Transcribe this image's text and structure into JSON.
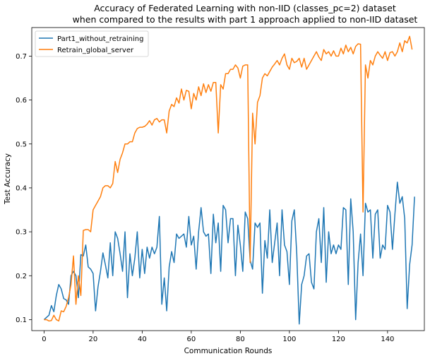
{
  "chart_data": {
    "type": "line",
    "title_line1": "Accuracy of Federated Learning with non-IID (classes_pc=2) dataset",
    "title_line2": "when compared to the results with part 1 approach applied to non-IID dataset",
    "xlabel": "Communication Rounds",
    "ylabel": "Test Accuracy",
    "xlim": [
      -5,
      155
    ],
    "ylim": [
      0.075,
      0.765
    ],
    "xticks": [
      0,
      20,
      40,
      60,
      80,
      100,
      120,
      140
    ],
    "yticks": [
      0.1,
      0.2,
      0.3,
      0.4,
      0.5,
      0.6,
      0.7
    ],
    "grid": false,
    "legend_position": "upper-left",
    "series": [
      {
        "name": "Part1_without_retraining",
        "color": "#1f77b4",
        "values": [
          0.1,
          0.105,
          0.11,
          0.132,
          0.118,
          0.155,
          0.18,
          0.17,
          0.148,
          0.145,
          0.135,
          0.2,
          0.21,
          0.2,
          0.15,
          0.248,
          0.245,
          0.27,
          0.22,
          0.215,
          0.205,
          0.12,
          0.175,
          0.21,
          0.252,
          0.225,
          0.195,
          0.275,
          0.2,
          0.3,
          0.285,
          0.25,
          0.21,
          0.3,
          0.15,
          0.25,
          0.2,
          0.24,
          0.3,
          0.195,
          0.26,
          0.205,
          0.265,
          0.24,
          0.265,
          0.25,
          0.265,
          0.335,
          0.135,
          0.195,
          0.12,
          0.22,
          0.255,
          0.23,
          0.295,
          0.285,
          0.29,
          0.295,
          0.265,
          0.335,
          0.27,
          0.29,
          0.215,
          0.3,
          0.355,
          0.3,
          0.29,
          0.295,
          0.205,
          0.34,
          0.275,
          0.32,
          0.21,
          0.36,
          0.35,
          0.275,
          0.33,
          0.33,
          0.2,
          0.315,
          0.27,
          0.21,
          0.345,
          0.33,
          0.235,
          0.215,
          0.32,
          0.31,
          0.32,
          0.16,
          0.28,
          0.24,
          0.35,
          0.23,
          0.275,
          0.32,
          0.2,
          0.35,
          0.27,
          0.255,
          0.18,
          0.325,
          0.35,
          0.25,
          0.09,
          0.18,
          0.2,
          0.245,
          0.25,
          0.185,
          0.17,
          0.3,
          0.33,
          0.23,
          0.355,
          0.185,
          0.3,
          0.25,
          0.27,
          0.25,
          0.27,
          0.26,
          0.355,
          0.35,
          0.18,
          0.375,
          0.3,
          0.1,
          0.23,
          0.295,
          0.2,
          0.365,
          0.345,
          0.35,
          0.24,
          0.34,
          0.35,
          0.24,
          0.27,
          0.26,
          0.36,
          0.345,
          0.26,
          0.34,
          0.413,
          0.365,
          0.38,
          0.33,
          0.125,
          0.225,
          0.27,
          0.38
        ]
      },
      {
        "name": "Retrain_global_server",
        "color": "#ff7f0e",
        "values": [
          0.1,
          0.1,
          0.097,
          0.098,
          0.11,
          0.1,
          0.097,
          0.12,
          0.118,
          0.13,
          0.15,
          0.18,
          0.245,
          0.135,
          0.2,
          0.155,
          0.303,
          0.305,
          0.305,
          0.3,
          0.35,
          0.36,
          0.37,
          0.38,
          0.4,
          0.405,
          0.405,
          0.4,
          0.41,
          0.46,
          0.435,
          0.465,
          0.48,
          0.5,
          0.5,
          0.505,
          0.505,
          0.525,
          0.535,
          0.538,
          0.538,
          0.54,
          0.545,
          0.553,
          0.543,
          0.555,
          0.558,
          0.55,
          0.555,
          0.555,
          0.525,
          0.575,
          0.59,
          0.585,
          0.605,
          0.593,
          0.625,
          0.6,
          0.622,
          0.62,
          0.58,
          0.615,
          0.6,
          0.63,
          0.61,
          0.637,
          0.617,
          0.635,
          0.62,
          0.64,
          0.64,
          0.525,
          0.635,
          0.625,
          0.66,
          0.66,
          0.67,
          0.67,
          0.68,
          0.673,
          0.65,
          0.677,
          0.68,
          0.68,
          0.23,
          0.57,
          0.5,
          0.595,
          0.61,
          0.65,
          0.66,
          0.655,
          0.665,
          0.675,
          0.682,
          0.69,
          0.68,
          0.695,
          0.705,
          0.68,
          0.67,
          0.695,
          0.685,
          0.688,
          0.695,
          0.675,
          0.695,
          0.67,
          0.68,
          0.69,
          0.7,
          0.71,
          0.698,
          0.69,
          0.715,
          0.705,
          0.71,
          0.7,
          0.712,
          0.7,
          0.7,
          0.718,
          0.705,
          0.725,
          0.71,
          0.72,
          0.705,
          0.722,
          0.728,
          0.727,
          0.345,
          0.68,
          0.65,
          0.69,
          0.68,
          0.7,
          0.71,
          0.702,
          0.695,
          0.71,
          0.69,
          0.708,
          0.71,
          0.7,
          0.71,
          0.73,
          0.71,
          0.735,
          0.73,
          0.745,
          0.715
        ]
      }
    ]
  }
}
